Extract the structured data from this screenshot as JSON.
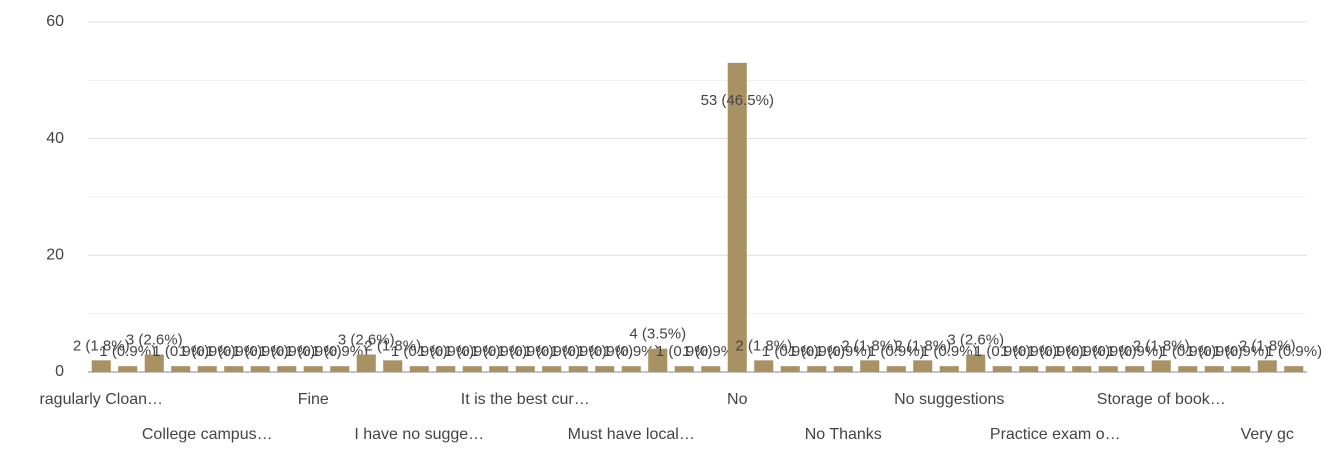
{
  "chart_data": {
    "type": "bar",
    "categories": [
      "ragularly Cloan…",
      null,
      null,
      null,
      "College campus…",
      null,
      null,
      null,
      "Fine",
      null,
      null,
      null,
      "I have no sugge…",
      null,
      null,
      null,
      "It is the best cur…",
      null,
      null,
      null,
      "Must have local…",
      null,
      null,
      null,
      "No",
      null,
      null,
      null,
      "No Thanks",
      null,
      null,
      null,
      "No suggestions",
      null,
      null,
      null,
      "Practice exam o…",
      null,
      null,
      null,
      "Storage of book…",
      null,
      null,
      null,
      "Very gc",
      null
    ],
    "values": [
      2,
      1,
      3,
      1,
      1,
      1,
      1,
      1,
      1,
      1,
      3,
      2,
      1,
      1,
      1,
      1,
      1,
      1,
      1,
      1,
      1,
      4,
      1,
      1,
      53,
      2,
      1,
      1,
      1,
      2,
      1,
      2,
      1,
      3,
      1,
      1,
      1,
      1,
      1,
      1,
      2,
      1,
      1,
      1,
      2,
      1
    ],
    "value_labels": [
      "2 (1.8%)",
      "1 (0.9%)",
      "3 (2.6%)",
      "1 (0.9%)",
      "1 (0.9%)",
      "1 (0.9%)",
      "1 (0.9%)",
      "1 (0.9%)",
      "1 (0.9%)",
      "1 (0.9%)",
      "3 (2.6%)",
      "2 (1.8%)",
      "1 (0.9%)",
      "1 (0.9%)",
      "1 (0.9%)",
      "1 (0.9%)",
      "1 (0.9%)",
      "1 (0.9%)",
      "1 (0.9%)",
      "1 (0.9%)",
      "1 (0.9%)",
      "4 (3.5%)",
      "1 (0.9%)",
      "1 (0.9%)",
      "53 (46.5%)",
      "2 (1.8%)",
      "1 (0.9%)",
      "1 (0.9%)",
      "1 (0.9%)",
      "2 (1.8%)",
      "1 (0.9%)",
      "2 (1.8%)",
      "1 (0.9%)",
      "3 (2.6%)",
      "1 (0.9%)",
      "1 (0.9%)",
      "1 (0.9%)",
      "1 (0.9%)",
      "1 (0.9%)",
      "1 (0.9%)",
      "2 (1.8%)",
      "1 (0.9%)",
      "1 (0.9%)",
      "1 (0.9%)",
      "2 (1.8%)",
      "1 (0.9%)"
    ],
    "color": "#a89163",
    "ylim": [
      0,
      60
    ],
    "yticks": [
      0,
      20,
      40,
      60
    ],
    "minor_yticks": [
      10,
      30,
      50
    ],
    "grid": true
  }
}
